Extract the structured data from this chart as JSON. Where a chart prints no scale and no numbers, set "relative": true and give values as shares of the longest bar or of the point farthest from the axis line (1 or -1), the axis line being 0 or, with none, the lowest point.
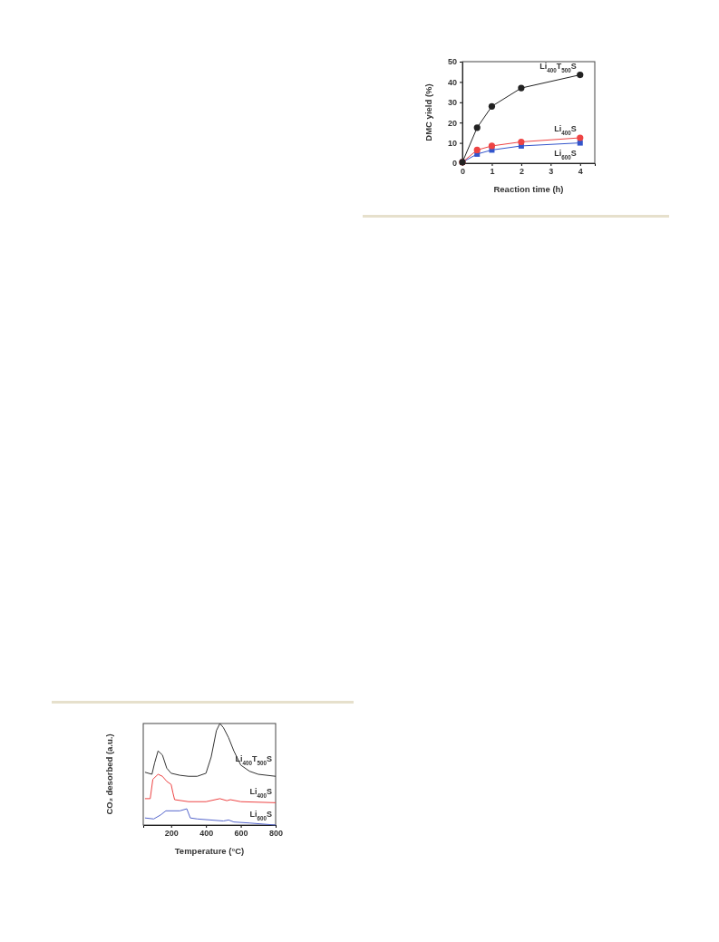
{
  "chart_data": [
    {
      "type": "line",
      "xlabel": "Reaction time (h)",
      "ylabel": "DMC yield (%)",
      "xlim": [
        0,
        4.5
      ],
      "ylim": [
        0,
        50
      ],
      "xticks": [
        0,
        1,
        2,
        3,
        4
      ],
      "yticks": [
        0,
        10,
        20,
        30,
        40,
        50
      ],
      "x": [
        0,
        0.5,
        1,
        2,
        4
      ],
      "grid": false,
      "line_style": "solid",
      "series": [
        {
          "name": "Li$_{400}$T$_{500}$S",
          "color": "#222222",
          "marker": "circle",
          "values": [
            0.5,
            17.5,
            28,
            37,
            43.5
          ]
        },
        {
          "name": "Li$_{400}$S",
          "color": "#ee4444",
          "marker": "circle",
          "values": [
            0.5,
            6.5,
            8.5,
            10.5,
            12.5
          ]
        },
        {
          "name": "Li$_{600}$S",
          "color": "#3355cc",
          "marker": "square",
          "values": [
            0.5,
            4.5,
            6.5,
            8.5,
            10
          ]
        }
      ]
    },
    {
      "type": "line",
      "relative": true,
      "xlabel": "Temperature (°C)",
      "ylabel": "CO₂ desorbed (a.u.)",
      "xlim": [
        40,
        800
      ],
      "xticks": [
        200,
        400,
        600,
        800
      ],
      "grid": false,
      "line_style": "solid",
      "marker": "none",
      "series": [
        {
          "name": "Li$_{400}$T$_{500}$S",
          "color": "#333333",
          "x": [
            50,
            90,
            105,
            125,
            150,
            175,
            200,
            250,
            300,
            350,
            400,
            430,
            460,
            480,
            500,
            530,
            560,
            600,
            650,
            700,
            800
          ],
          "values": [
            0.52,
            0.5,
            0.61,
            0.73,
            0.69,
            0.56,
            0.51,
            0.49,
            0.48,
            0.48,
            0.51,
            0.67,
            0.93,
            1,
            0.96,
            0.86,
            0.73,
            0.59,
            0.53,
            0.5,
            0.48
          ]
        },
        {
          "name": "Li$_{400}$S",
          "color": "#ee4444",
          "x": [
            50,
            80,
            95,
            125,
            150,
            175,
            200,
            210,
            220,
            300,
            400,
            480,
            520,
            540,
            600,
            800
          ],
          "values": [
            0.26,
            0.26,
            0.45,
            0.5,
            0.48,
            0.43,
            0.4,
            0.32,
            0.25,
            0.23,
            0.23,
            0.26,
            0.24,
            0.25,
            0.23,
            0.22
          ]
        },
        {
          "name": "Li$_{600}$S",
          "color": "#5566cc",
          "x": [
            50,
            100,
            140,
            170,
            250,
            290,
            310,
            350,
            500,
            530,
            560,
            650,
            800
          ],
          "values": [
            0.07,
            0.06,
            0.1,
            0.14,
            0.14,
            0.16,
            0.07,
            0.06,
            0.04,
            0.05,
            0.03,
            0.02,
            0
          ]
        }
      ]
    }
  ]
}
